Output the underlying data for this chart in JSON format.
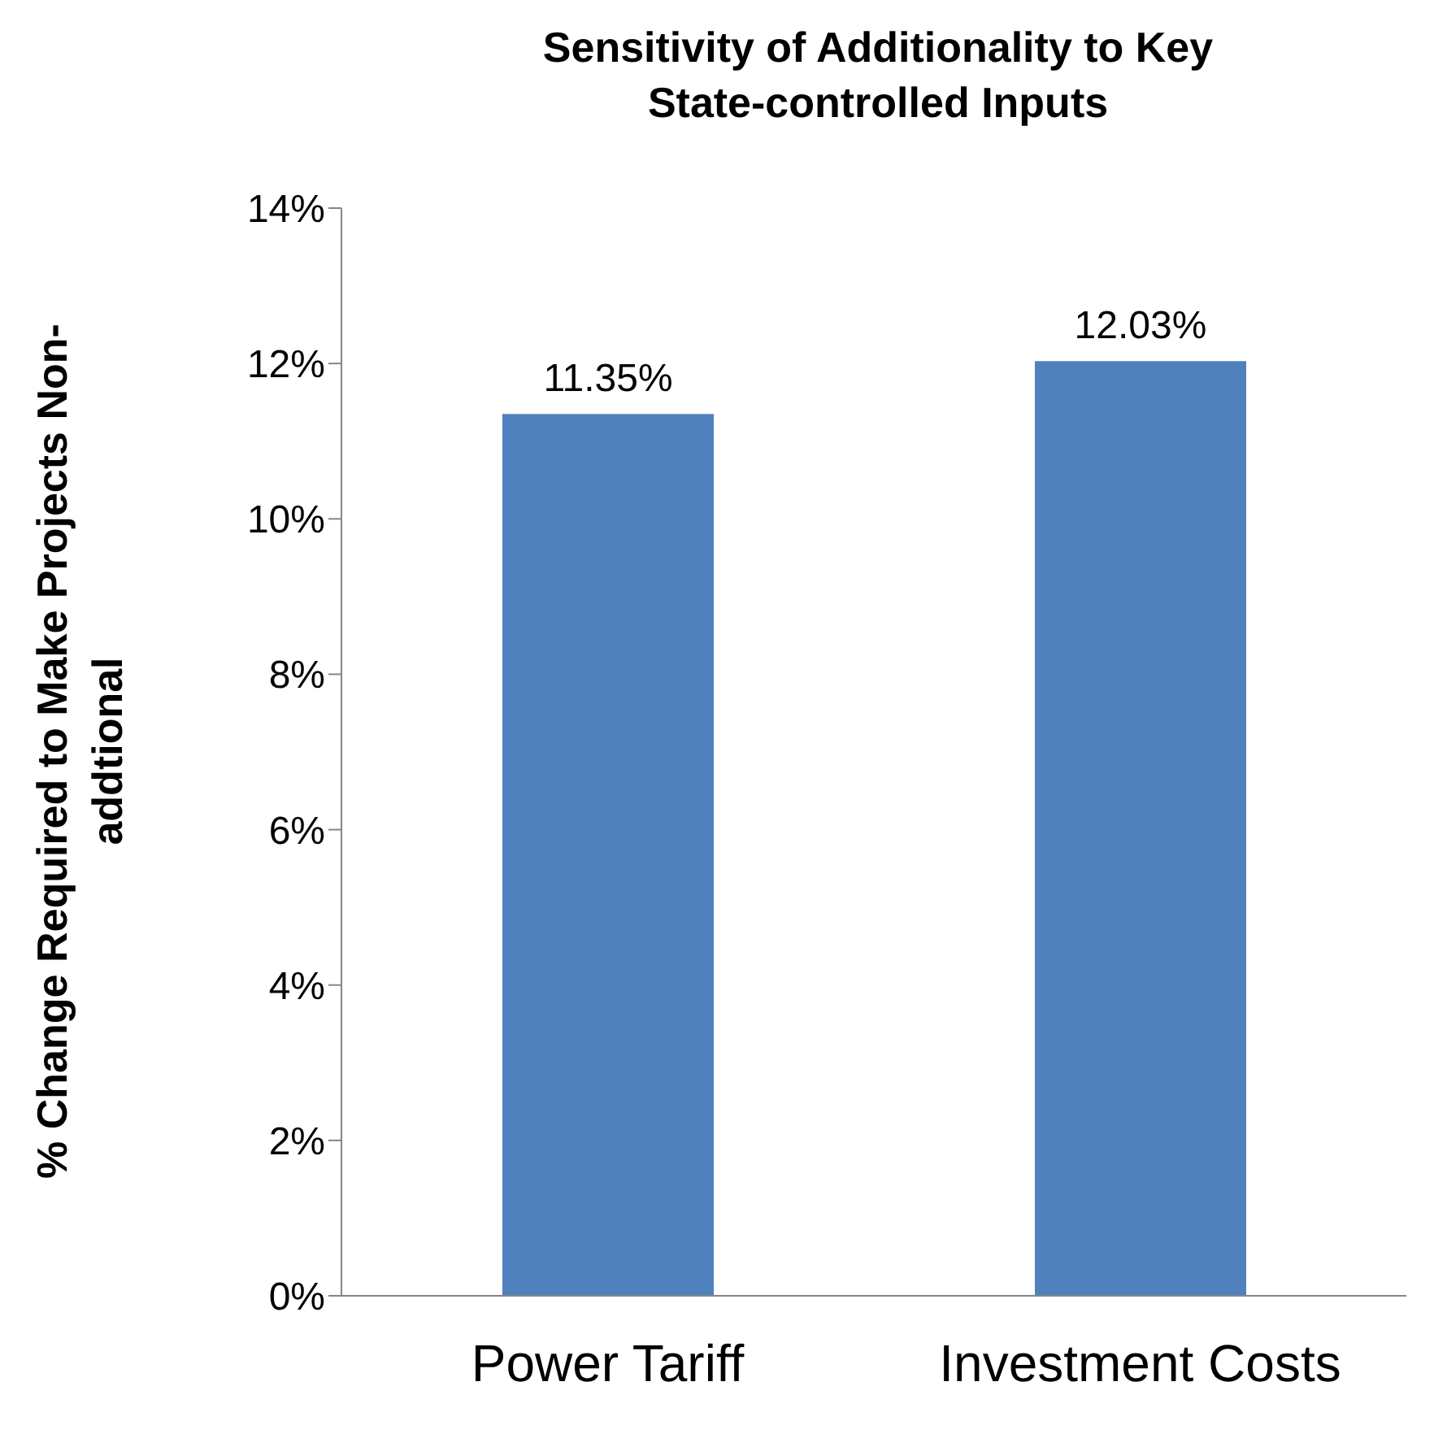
{
  "chart_data": {
    "type": "bar",
    "title": "Sensitivity of Additionality to Key State-controlled Inputs",
    "ylabel": "% Change Required to Make Projects Non-addtional",
    "categories": [
      "Power Tariff",
      "Investment Costs"
    ],
    "values": [
      11.35,
      12.03
    ],
    "value_labels": [
      "11.35%",
      "12.03%"
    ],
    "color": "#4f81bd",
    "ylim": [
      0,
      14
    ],
    "yticks": [
      {
        "value": 0,
        "label": "0%"
      },
      {
        "value": 2,
        "label": "2%"
      },
      {
        "value": 4,
        "label": "4%"
      },
      {
        "value": 6,
        "label": "6%"
      },
      {
        "value": 8,
        "label": "8%"
      },
      {
        "value": 10,
        "label": "10%"
      },
      {
        "value": 12,
        "label": "12%"
      },
      {
        "value": 14,
        "label": "14%"
      }
    ],
    "grid": false,
    "legend": false
  }
}
